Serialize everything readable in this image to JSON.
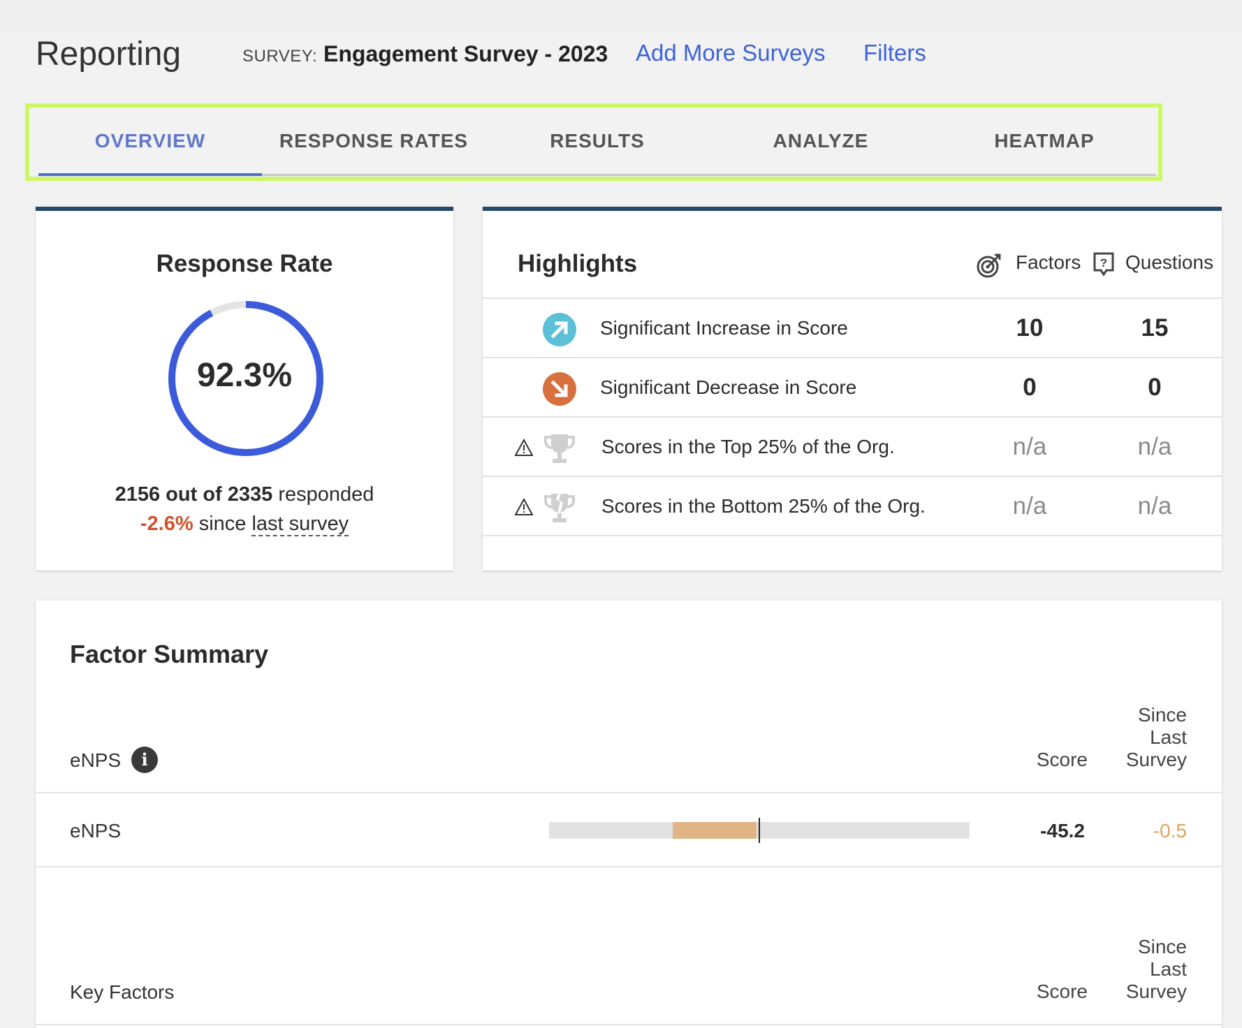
{
  "header": {
    "title": "Reporting",
    "survey_label": "SURVEY:",
    "survey_name": "Engagement Survey - 2023",
    "add_more": "Add More Surveys",
    "filters": "Filters"
  },
  "tabs": [
    {
      "label": "OVERVIEW",
      "active": true
    },
    {
      "label": "RESPONSE RATES",
      "active": false
    },
    {
      "label": "RESULTS",
      "active": false
    },
    {
      "label": "ANALYZE",
      "active": false
    },
    {
      "label": "HEATMAP",
      "active": false
    }
  ],
  "response_rate": {
    "title": "Response Rate",
    "value": "92.3%",
    "fraction": 0.923,
    "responded_bold": "2156 out of 2335",
    "responded_tail": " responded",
    "change": "-2.6%",
    "since_text": " since ",
    "since_link": "last survey"
  },
  "highlights": {
    "title": "Highlights",
    "factors_label": "Factors",
    "questions_label": "Questions",
    "rows": [
      {
        "label": "Significant Increase in Score",
        "factors": "10",
        "questions": "15"
      },
      {
        "label": "Significant Decrease in Score",
        "factors": "0",
        "questions": "0"
      },
      {
        "label": "Scores in the Top 25% of the Org.",
        "factors": "n/a",
        "questions": "n/a"
      },
      {
        "label": "Scores in the Bottom 25% of the Org.",
        "factors": "n/a",
        "questions": "n/a"
      }
    ]
  },
  "factor_summary": {
    "title": "Factor Summary",
    "enps_header": "eNPS",
    "score_header": "Score",
    "since_header": [
      "Since",
      "Last",
      "Survey"
    ],
    "enps_row": {
      "label": "eNPS",
      "score": "-45.2",
      "delta": "-0.5",
      "bar_value": -45.2
    },
    "key_factors_header": "Key Factors",
    "info_glyph": "i"
  },
  "colors": {
    "accent": "#3c63d9",
    "ring": "#3b5bdb",
    "increase": "#5bc0d8",
    "decrease": "#d8703e",
    "negative": "#d0512a",
    "delta": "#e0a360",
    "tab_highlight": "#ccf866"
  }
}
